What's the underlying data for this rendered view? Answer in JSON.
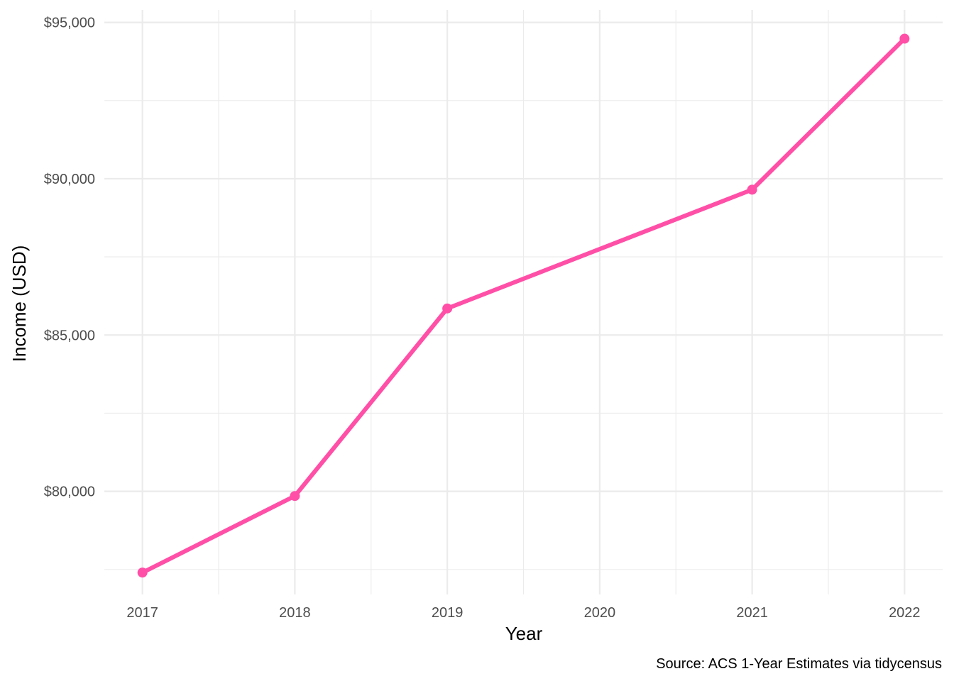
{
  "chart_data": {
    "type": "line",
    "title": "",
    "xlabel": "Year",
    "ylabel": "Income (USD)",
    "caption": "Source: ACS 1-Year Estimates via tidycensus",
    "x": [
      2017,
      2018,
      2019,
      2020,
      2021,
      2022
    ],
    "x_tick_labels": [
      "2017",
      "2018",
      "2019",
      "2020",
      "2021",
      "2022"
    ],
    "series": [
      {
        "x": [
          2017,
          2018,
          2019,
          2021,
          2022
        ],
        "values": [
          77400,
          79850,
          85850,
          89650,
          94480
        ],
        "color": "#ff4fa7"
      }
    ],
    "y_ticks": [
      80000,
      85000,
      90000,
      95000
    ],
    "y_tick_labels": [
      "$80,000",
      "$85,000",
      "$90,000",
      "$95,000"
    ],
    "y_minor_ticks": [
      77500,
      82500,
      87500,
      92500
    ],
    "x_minor_ticks": [
      2017.5,
      2018.5,
      2019.5,
      2020.5,
      2021.5
    ],
    "xlim": [
      2016.75,
      2022.25
    ],
    "ylim": [
      76700,
      95400
    ],
    "grid": true,
    "legend": "none",
    "line_color": "#ff4fa7"
  }
}
